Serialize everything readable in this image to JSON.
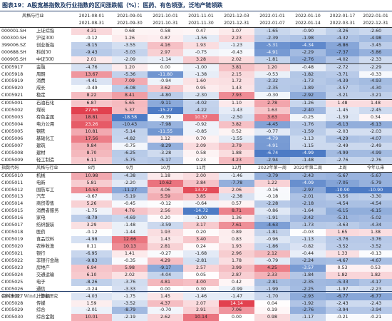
{
  "title": "图表19：A股宽基指数及行业指数的区间涨跌幅（%）：医药、有色领涨，泛地产链领跌",
  "header": {
    "corner_label": "风格与行业",
    "code_label": "",
    "date_top": [
      "2021-08-01",
      "2021-09-01",
      "2021-10-01",
      "2021-11-01",
      "2021-12-03",
      "2022-01-01",
      "2022-01-10",
      "2022-01-17",
      "2022-01-01"
    ],
    "date_bottom": [
      "2021-08-31",
      "2021-09-30",
      "2021-10-31",
      "2021-11-30",
      "2021-12-31",
      "2022-01-07",
      "2022-01-14",
      "2022-03-31",
      "2022-12-31"
    ]
  },
  "subheader": {
    "code_label": "指数代码",
    "name_label": "风格与行业",
    "periods": [
      "8月",
      "9月",
      "10月",
      "11月",
      "12月",
      "2022年第一周",
      "2022年第二周",
      "上周",
      "今年以来"
    ]
  },
  "colors": {
    "neg": "#3d6fc0",
    "pos": "#e03040",
    "title": "#1f3b66"
  },
  "rows": [
    {
      "code": "000001.SH",
      "name": "上证综指",
      "v": [
        4.31,
        0.68,
        0.58,
        0.47,
        1.07,
        -1.65,
        -0.9,
        -3.26,
        -2.6
      ]
    },
    {
      "code": "000300.SH",
      "name": "沪深300",
      "v": [
        -0.12,
        1.26,
        0.87,
        -1.56,
        2.23,
        -2.39,
        -1.98,
        -4.32,
        -4.98
      ]
    },
    {
      "code": "399006.SZ",
      "name": "创业板指",
      "v": [
        -8.15,
        -3.55,
        4.16,
        1.93,
        -1.23,
        -5.31,
        -4.34,
        -6.86,
        -3.45
      ]
    },
    {
      "code": "000688.SH",
      "name": "科创50",
      "v": [
        -9.43,
        -5.03,
        2.97,
        -0.75,
        -0.43,
        -4.91,
        -2.29,
        -7.37,
        -5.86
      ]
    },
    {
      "code": "000905.SH",
      "name": "中证500",
      "v": [
        2.01,
        -2.09,
        -1.14,
        3.28,
        2.02,
        -1.81,
        -2.76,
        -4.02,
        -2.33
      ]
    },
    {
      "code": "CI005917",
      "name": "金融",
      "v": [
        -4.76,
        1.2,
        0.0,
        -1.0,
        3.81,
        1.2,
        -0.48,
        -2.72,
        -2.29
      ]
    },
    {
      "code": "CI005918",
      "name": "周期",
      "v": [
        13.67,
        -5.36,
        -11.8,
        -1.38,
        2.15,
        -0.53,
        -1.82,
        -3.71,
        -0.33
      ]
    },
    {
      "code": "CI005919",
      "name": "消费",
      "v": [
        -4.41,
        7.09,
        -0.94,
        1.6,
        1.72,
        -2.32,
        -1.73,
        -4.39,
        -4.93
      ]
    },
    {
      "code": "CI005920",
      "name": "成长",
      "v": [
        -0.49,
        -6.08,
        3.62,
        0.95,
        1.43,
        -2.35,
        -1.89,
        -3.57,
        -4.3
      ]
    },
    {
      "code": "CI005921",
      "name": "稳定",
      "v": [
        8.22,
        8.41,
        -4.8,
        -2.3,
        7.93,
        -0.3,
        -2.92,
        -3.21,
        -3.21
      ]
    },
    {
      "code": "CI005001",
      "name": "石油石化",
      "v": [
        6.87,
        5.65,
        -9.11,
        -4.02,
        1.1,
        2.78,
        -1.26,
        1.48,
        1.48
      ]
    },
    {
      "code": "CI005002",
      "name": "煤炭",
      "v": [
        27.66,
        5.37,
        -15.27,
        -4.22,
        -1.43,
        1.63,
        -2.4,
        -1.45,
        -2.45
      ]
    },
    {
      "code": "CI005003",
      "name": "有色金属",
      "v": [
        18.81,
        -18.58,
        -0.39,
        10.37,
        -2.5,
        3.63,
        -0.25,
        -1.59,
        0.34
      ]
    },
    {
      "code": "CI005004",
      "name": "电力公用",
      "v": [
        23.26,
        -10.43,
        -7.98,
        -0.92,
        3.82,
        -4.45,
        -1.76,
        -6.13,
        -6.13
      ]
    },
    {
      "code": "CI005005",
      "name": "钢铁",
      "v": [
        10.81,
        -5.14,
        -11.55,
        -0.85,
        0.52,
        -0.77,
        -1.59,
        -2.03,
        -2.03
      ]
    },
    {
      "code": "CI005006",
      "name": "基础化工",
      "v": [
        17.56,
        -4.82,
        1.12,
        0.7,
        -1.55,
        -4.79,
        -1.13,
        -4.29,
        -4.07
      ]
    },
    {
      "code": "CI005007",
      "name": "建筑",
      "v": [
        9.84,
        -0.75,
        -8.29,
        2.09,
        3.79,
        -4.91,
        -1.15,
        -2.49,
        -2.49
      ]
    },
    {
      "code": "CI005008",
      "name": "建材",
      "v": [
        8.7,
        -6.25,
        -3.28,
        0.58,
        1.88,
        -6.74,
        -4.99,
        -4.99,
        -4.99
      ]
    },
    {
      "code": "CI005009",
      "name": "轻工制造",
      "v": [
        6.11,
        -5.75,
        -5.17,
        0.23,
        4.23,
        -2.94,
        -1.48,
        -2.76,
        -2.76
      ]
    },
    {
      "code": "CI005010",
      "name": "机械",
      "v": [
        10.98,
        -4.38,
        1.18,
        2.0,
        -1.46,
        -3.79,
        -2.43,
        -5.67,
        -5.67
      ]
    },
    {
      "code": "CI005011",
      "name": "电新",
      "v": [
        5.81,
        -2.2,
        10.62,
        3.84,
        -7.78,
        1.22,
        -4.09,
        -7.05,
        -5.79
      ]
    },
    {
      "code": "CI005012",
      "name": "国防军工",
      "v": [
        14.53,
        -11.27,
        4.06,
        13.72,
        2.06,
        -0.16,
        -2.97,
        -10.9,
        -10.9
      ]
    },
    {
      "code": "CI005013",
      "name": "汽车",
      "v": [
        -0.67,
        -5.19,
        5.59,
        3.85,
        -2.38,
        -0.18,
        -2.01,
        -3.56,
        -3.3
      ]
    },
    {
      "code": "CI005014",
      "name": "商贸零售",
      "v": [
        5.26,
        -0.45,
        -0.12,
        -0.64,
        0.57,
        -2.28,
        -2.18,
        -4.54,
        -4.54
      ]
    },
    {
      "code": "CI005015",
      "name": "消费者服务",
      "v": [
        -1.75,
        4.76,
        2.56,
        -14.72,
        8.71,
        -0.86,
        -1.64,
        -6.15,
        -6.15
      ]
    },
    {
      "code": "CI005016",
      "name": "家电",
      "v": [
        -8.79,
        -4.69,
        0.2,
        -1.0,
        1.36,
        -1.91,
        -2.42,
        -5.31,
        -5.02
      ]
    },
    {
      "code": "CI005017",
      "name": "纺织服装",
      "v": [
        3.29,
        -1.48,
        -3.59,
        3.17,
        7.61,
        -4.63,
        -1.73,
        -3.63,
        -4.34
      ]
    },
    {
      "code": "CI005018",
      "name": "医药",
      "v": [
        -0.12,
        -1.44,
        1.93,
        0.2,
        0.89,
        -1.81,
        -0.03,
        1.65,
        1.38
      ]
    },
    {
      "code": "CI005019",
      "name": "食品饮料",
      "v": [
        -4.98,
        12.66,
        1.43,
        3.4,
        0.83,
        -0.96,
        -1.13,
        -3.76,
        -3.76
      ]
    },
    {
      "code": "CI005020",
      "name": "农林牧渔",
      "v": [
        0.11,
        10.13,
        2.81,
        0.24,
        1.93,
        -1.86,
        -0.82,
        -3.52,
        -3.52
      ]
    },
    {
      "code": "CI005021",
      "name": "银行",
      "v": [
        -6.95,
        1.41,
        -0.27,
        -1.68,
        2.96,
        2.12,
        -0.44,
        1.33,
        -0.13
      ]
    },
    {
      "code": "CI005022",
      "name": "非银行金融",
      "v": [
        -9.83,
        -0.35,
        4.29,
        -2.81,
        1.78,
        -0.79,
        -2.24,
        -4.67,
        -4.67
      ]
    },
    {
      "code": "CI005023",
      "name": "房地产",
      "v": [
        6.94,
        5.98,
        -9.17,
        2.57,
        3.99,
        4.25,
        -3.57,
        0.53,
        0.53
      ]
    },
    {
      "code": "CI005024",
      "name": "交通运输",
      "v": [
        6.1,
        2.02,
        -4.04,
        0.05,
        2.87,
        2.33,
        -1.84,
        1.82,
        1.82
      ]
    },
    {
      "code": "CI005025",
      "name": "电子",
      "v": [
        -8.26,
        -3.76,
        4.81,
        4.0,
        0.42,
        -2.81,
        -2.35,
        -5.33,
        -4.17
      ]
    },
    {
      "code": "CI005026",
      "name": "通信",
      "v": [
        -0.24,
        -3.33,
        0.0,
        0.3,
        -0.99,
        -1.99,
        -2.25,
        -1.97,
        -2.23
      ]
    },
    {
      "code": "CI005027",
      "name": "计算机",
      "v": [
        -4.03,
        -1.75,
        1.45,
        -1.46,
        -1.47,
        -1.7,
        -2.93,
        -6.77,
        -6.77
      ]
    },
    {
      "code": "CI005028",
      "name": "传媒",
      "v": [
        1.59,
        -3.52,
        4.37,
        2.07,
        14.14,
        0.04,
        -1.92,
        -2.43,
        -2.43
      ]
    },
    {
      "code": "CI005029",
      "name": "综合",
      "v": [
        -2.01,
        -8.79,
        -0.7,
        2.91,
        7.06,
        0.19,
        -2.76,
        -3.94,
        -3.94
      ]
    },
    {
      "code": "CI005030",
      "name": "综合金融",
      "v": [
        10.01,
        -2.19,
        2.62,
        10.14,
        0.0,
        0.98,
        -1.17,
        -0.21,
        -0.21
      ]
    }
  ],
  "footer": "资料来源：Wind，华泰研究"
}
